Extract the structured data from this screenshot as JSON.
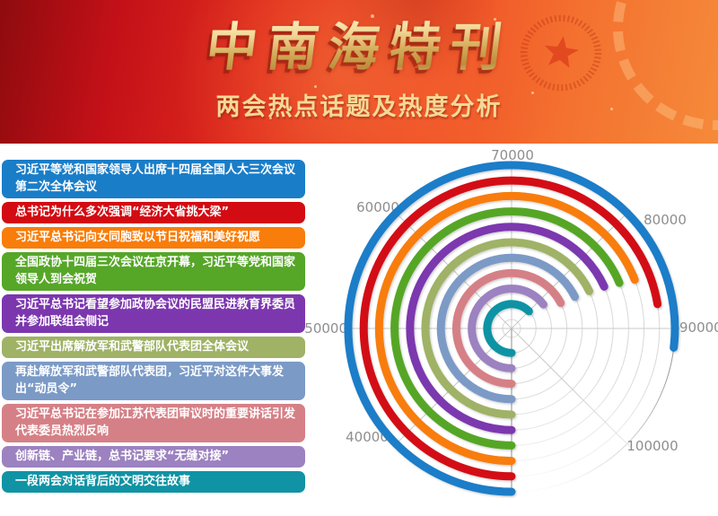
{
  "header": {
    "title": "中南海特刊",
    "subtitle": "两会热点话题及热度分析",
    "title_color": "#e7c87e",
    "banner_colors": {
      "dark_red": "#8e0b0e",
      "red": "#e02a1d",
      "orange": "#f58a3a"
    },
    "emblem": {
      "icon": "star",
      "color": "#e04a24"
    }
  },
  "topics": [
    {
      "label": "习近平等党和国家领导人出席十四届全国人大三次会议第二次全体会议",
      "color": "#1a7dc8"
    },
    {
      "label": "总书记为什么多次强调“经济大省挑大梁”",
      "color": "#d30b12"
    },
    {
      "label": "习近平总书记向女同胞致以节日祝福和美好祝愿",
      "color": "#f87d0a"
    },
    {
      "label": "全国政协十四届三次会议在京开幕，习近平等党和国家领导人到会祝贺",
      "color": "#56a628"
    },
    {
      "label": "习近平总书记看望参加政协会议的民盟民进教育界委员并参加联组会侧记",
      "color": "#7c37ae"
    },
    {
      "label": "习近平出席解放军和武警部队代表团全体会议",
      "color": "#9fb266"
    },
    {
      "label": "再赴解放军和武警部队代表团，习近平对这件大事发出“动员令”",
      "color": "#7b9ac6"
    },
    {
      "label": "习近平总书记在参加江苏代表团审议时的重要讲话引发代表委员热烈反响",
      "color": "#d58086"
    },
    {
      "label": "创新链、产业链，总书记要求“无缝对接”",
      "color": "#9c82c0"
    },
    {
      "label": "一段两会对话背后的文明交往故事",
      "color": "#1093a4"
    }
  ],
  "chart_data": {
    "type": "bar",
    "variant": "radial-circular-bars",
    "title": "两会热点话题及热度分析",
    "categories": [
      "习近平等党和国家领导人出席十四届全国人大三次会议第二次全体会议",
      "总书记为什么多次强调“经济大省挑大梁”",
      "习近平总书记向女同胞致以节日祝福和美好祝愿",
      "全国政协十四届三次会议在京开幕，习近平等党和国家领导人到会祝贺",
      "习近平总书记看望参加政协会议的民盟民进教育界委员并参加联组会侧记",
      "习近平出席解放军和武警部队代表团全体会议",
      "再赴解放军和武警部队代表团，习近平对这件大事发出“动员令”",
      "习近平总书记在参加江苏代表团审议时的重要讲话引发代表委员热烈反响",
      "创新链、产业链，总书记要求“无缝对接”",
      "一段两会对话背后的文明交往故事"
    ],
    "values": [
      91500,
      87900,
      85200,
      84900,
      84600,
      84300,
      84100,
      83900,
      81800,
      80100
    ],
    "colors": [
      "#1a7dc8",
      "#d30b12",
      "#f87d0a",
      "#56a628",
      "#7c37ae",
      "#9fb266",
      "#7b9ac6",
      "#d58086",
      "#9c82c0",
      "#1093a4"
    ],
    "axis": {
      "min": 30000,
      "max": 100000,
      "tick_interval": 10000,
      "ticks": [
        "40000",
        "50000",
        "60000",
        "70000",
        "80000",
        "90000",
        "100000"
      ],
      "start_angle_deg": 270,
      "degrees_per_tick": 45,
      "direction": "clockwise"
    },
    "grid": true,
    "legend_position": "left",
    "tick_color": "#8e8e8e",
    "grid_color": "#d8d8d8"
  }
}
